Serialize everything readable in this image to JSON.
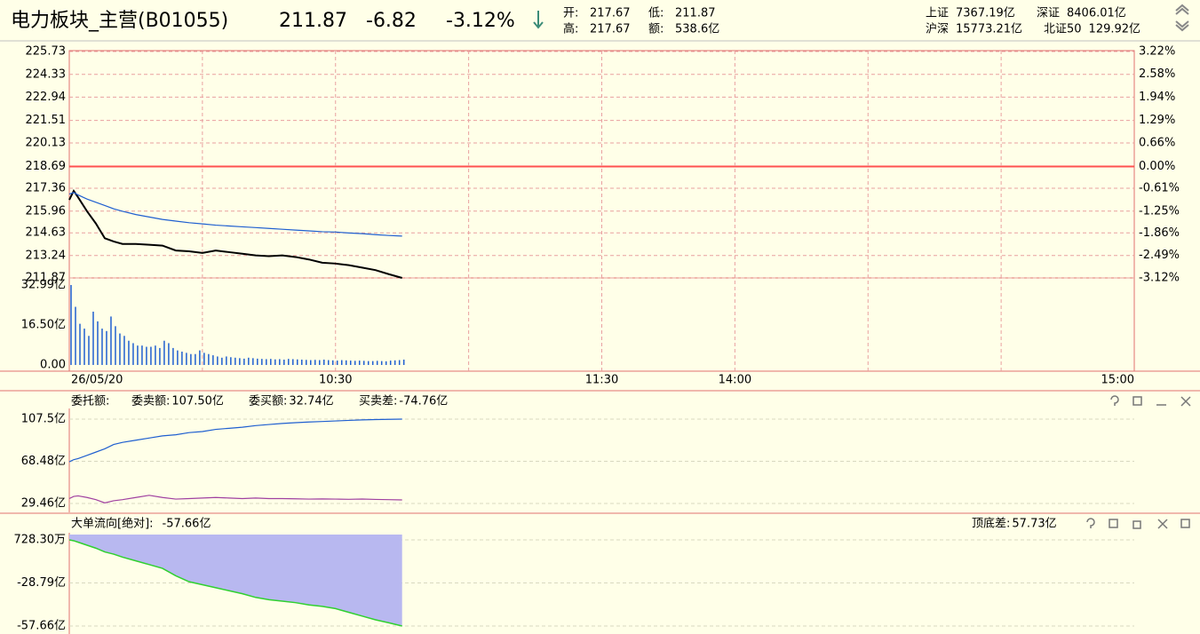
{
  "header": {
    "title": "电力板块_主营(B01055)",
    "price": "211.87",
    "change": "-6.82",
    "change_pct": "-3.12%",
    "open_label": "开:",
    "open": "217.67",
    "low_label": "低:",
    "low": "211.87",
    "high_label": "高:",
    "high": "217.67",
    "amount_label": "额:",
    "amount": "538.6亿",
    "indices": [
      {
        "name": "上证",
        "value": "7367.19亿"
      },
      {
        "name": "深证",
        "value": "8406.01亿"
      },
      {
        "name": "沪深",
        "value": "15773.21亿"
      },
      {
        "name": "北证50",
        "value": "129.92亿"
      }
    ]
  },
  "chart_data": [
    {
      "type": "line",
      "x": [
        0,
        1,
        2,
        4,
        6,
        8,
        10,
        12,
        15,
        18,
        21,
        24,
        27,
        30,
        33,
        36,
        39,
        42,
        45,
        48,
        51,
        54,
        57,
        60,
        63,
        66,
        69,
        72,
        75
      ],
      "xlim": [
        0,
        240
      ],
      "xticks": [
        {
          "value": 0,
          "label": "26/05/20"
        },
        {
          "value": 60,
          "label": "10:30"
        },
        {
          "value": 120,
          "label": "11:30"
        },
        {
          "value": 150,
          "label": "14:00"
        },
        {
          "value": 240,
          "label": "15:00"
        }
      ],
      "xgrid": [
        30,
        60,
        90,
        120,
        150,
        180,
        210
      ],
      "ylim": [
        211.87,
        225.73
      ],
      "yticks": [
        225.73,
        224.33,
        222.94,
        221.51,
        220.13,
        218.69,
        217.36,
        215.96,
        214.63,
        213.24,
        211.87
      ],
      "y2lim": [
        -3.12,
        3.22
      ],
      "y2ticks": [
        {
          "value": 3.22,
          "label": "3.22%"
        },
        {
          "value": 2.58,
          "label": "2.58%"
        },
        {
          "value": 1.94,
          "label": "1.94%"
        },
        {
          "value": 1.29,
          "label": "1.29%"
        },
        {
          "value": 0.66,
          "label": "0.66%"
        },
        {
          "value": 0,
          "label": "0.00%"
        },
        {
          "value": -0.61,
          "label": "-0.61%"
        },
        {
          "value": -1.25,
          "label": "-1.25%"
        },
        {
          "value": -1.86,
          "label": "-1.86%"
        },
        {
          "value": -2.49,
          "label": "-2.49%"
        },
        {
          "value": -3.12,
          "label": "-3.12%"
        }
      ],
      "grid": true,
      "series": [
        {
          "color": "#000000",
          "values": [
            216.65,
            217.2,
            216.8,
            215.95,
            215.2,
            214.3,
            214.1,
            213.95,
            213.95,
            213.9,
            213.85,
            213.55,
            213.5,
            213.4,
            213.55,
            213.45,
            213.35,
            213.25,
            213.2,
            213.25,
            213.15,
            213.0,
            212.8,
            212.75,
            212.65,
            212.5,
            212.35,
            212.1,
            211.87
          ]
        },
        {
          "color": "#1f5fd0",
          "values": [
            217.0,
            217.1,
            216.95,
            216.7,
            216.5,
            216.3,
            216.1,
            215.95,
            215.75,
            215.6,
            215.45,
            215.35,
            215.25,
            215.18,
            215.1,
            215.05,
            215.0,
            214.95,
            214.9,
            214.85,
            214.8,
            214.75,
            214.7,
            214.68,
            214.62,
            214.58,
            214.52,
            214.47,
            214.43
          ]
        }
      ]
    },
    {
      "type": "bar",
      "x": [
        0,
        1,
        2,
        3,
        4,
        5,
        6,
        7,
        8,
        9,
        10,
        11,
        12,
        13,
        14,
        15,
        16,
        17,
        18,
        19,
        20,
        21,
        22,
        23,
        24,
        25,
        26,
        27,
        28,
        29,
        30,
        31,
        32,
        33,
        34,
        35,
        36,
        37,
        38,
        39,
        40,
        41,
        42,
        43,
        44,
        45,
        46,
        47,
        48,
        49,
        50,
        51,
        52,
        53,
        54,
        55,
        56,
        57,
        58,
        59,
        60,
        61,
        62,
        63,
        64,
        65,
        66,
        67,
        68,
        69,
        70,
        71,
        72,
        73,
        74,
        75
      ],
      "xlim": [
        0,
        240
      ],
      "values": [
        32.99,
        24,
        17,
        15,
        12,
        22,
        18,
        15,
        14,
        20,
        16,
        13,
        12,
        10,
        9,
        8,
        8,
        7.5,
        7.5,
        8,
        7,
        10,
        9,
        7,
        6,
        5.5,
        5,
        4.5,
        4.5,
        6,
        5,
        4.5,
        4,
        3.5,
        3,
        3.5,
        3.2,
        3,
        2.8,
        2.6,
        3,
        2.8,
        2.6,
        2.5,
        2.4,
        2.5,
        2.3,
        2.4,
        2.2,
        2.5,
        2.4,
        2.3,
        2.2,
        2.1,
        2,
        2.1,
        2,
        2.2,
        2,
        1.9,
        1.8,
        2,
        1.9,
        1.8,
        1.7,
        1.8,
        1.7,
        1.6,
        1.6,
        1.7,
        1.6,
        1.5,
        1.8,
        1.9,
        2,
        2.2
      ],
      "color": "#1f5fd0",
      "ylim": [
        0,
        32.99
      ],
      "yticks": [
        {
          "value": 32.99,
          "label": "32.99亿"
        },
        {
          "value": 16.5,
          "label": "16.50亿"
        },
        {
          "value": 0,
          "label": "0.00"
        }
      ]
    },
    {
      "type": "line",
      "title": "委托额:",
      "x": [
        0,
        1,
        2,
        4,
        6,
        8,
        10,
        12,
        15,
        18,
        21,
        24,
        27,
        30,
        33,
        36,
        39,
        42,
        45,
        48,
        51,
        54,
        57,
        60,
        63,
        66,
        69,
        72,
        75
      ],
      "xlim": [
        0,
        240
      ],
      "ylim": [
        21.25,
        117.35
      ],
      "yticks": [
        {
          "value": 107.5,
          "label": "107.5亿"
        },
        {
          "value": 68.48,
          "label": "68.48亿"
        },
        {
          "value": 29.46,
          "label": "29.46亿"
        }
      ],
      "grid": true,
      "series": [
        {
          "name": "委卖额:",
          "color": "#1f5fd0",
          "last_label": "107.50亿",
          "values": [
            68,
            70,
            71,
            74,
            77,
            80,
            84,
            86,
            88,
            90,
            92,
            93,
            95,
            96,
            98,
            99,
            100,
            101.5,
            102.5,
            103.5,
            104.2,
            104.8,
            105.3,
            105.8,
            106.3,
            106.8,
            107.1,
            107.3,
            107.5
          ]
        },
        {
          "name": "委买额:",
          "color": "#a040a0",
          "last_label": "32.74亿",
          "values": [
            34,
            36,
            36.5,
            35,
            33,
            30,
            32,
            33,
            35,
            37,
            35,
            33.5,
            34,
            34.5,
            35,
            34.5,
            34,
            34.5,
            34,
            34,
            33.8,
            33.5,
            33.7,
            33.5,
            33.3,
            33.6,
            33.2,
            33,
            32.74
          ]
        }
      ],
      "annotations": [
        {
          "label": "买卖差:",
          "text": "-74.76亿"
        }
      ]
    },
    {
      "type": "area",
      "title": "大单流向[绝对]:",
      "title_value": "-57.66亿",
      "spread_label": "顶底差:",
      "spread_value": "57.73亿",
      "x": [
        0,
        1,
        2,
        4,
        6,
        8,
        10,
        12,
        15,
        18,
        21,
        24,
        27,
        30,
        33,
        36,
        39,
        42,
        45,
        48,
        51,
        54,
        57,
        60,
        63,
        66,
        69,
        72,
        75
      ],
      "xlim": [
        0,
        240
      ],
      "values": [
        0.07,
        -0.5,
        -1.5,
        -3.5,
        -5.5,
        -8,
        -9.5,
        -11.5,
        -14,
        -16.5,
        -19,
        -24,
        -28,
        -30,
        -32,
        -34,
        -36,
        -38.5,
        -40,
        -41,
        -42,
        -43.5,
        -44.5,
        -46,
        -48.5,
        -51,
        -53.5,
        -55.5,
        -57.66
      ],
      "ylim": [
        -61.83,
        3.64
      ],
      "yticks": [
        {
          "value": 0.0728,
          "label": "728.30万"
        },
        {
          "value": -28.79,
          "label": "-28.79亿"
        },
        {
          "value": -57.66,
          "label": "-57.66亿"
        }
      ],
      "grid": true,
      "color": "#b8b8f0",
      "line_color": "#30d030"
    }
  ]
}
